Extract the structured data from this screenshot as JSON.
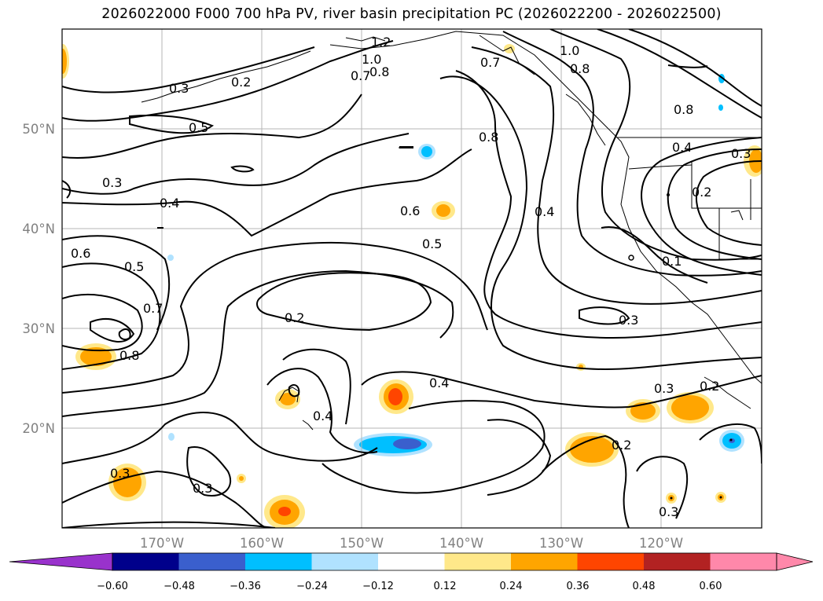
{
  "title": "2026022000 F000 700 hPa PV, river basin precipitation PC (2026022200 - 2026022500)",
  "lat_labels": [
    "50°N",
    "40°N",
    "30°N",
    "20°N"
  ],
  "lon_labels": [
    "170°W",
    "160°W",
    "150°W",
    "140°W",
    "130°W",
    "120°W"
  ],
  "contour_labels": [
    "1.2",
    "1.0",
    "1.0",
    "0.8",
    "0.8",
    "0.7",
    "0.7",
    "0.3",
    "0.2",
    "0.5",
    "0.3",
    "0.4",
    "0.6",
    "0.5",
    "0.8",
    "0.4",
    "0.6",
    "0.5",
    "0.7",
    "0.8",
    "0.2",
    "0.3",
    "0.4",
    "0.4",
    "0.3",
    "0.2",
    "0.3",
    "0.2",
    "0.3",
    "0.3",
    "0.8",
    "0.4",
    "0.3",
    "0.2",
    "0.1"
  ],
  "colorbar": {
    "colors": [
      "#9932cc",
      "#00008b",
      "#3a5fcd",
      "#00bfff",
      "#b0e2ff",
      "#ffffff",
      "#ffe88a",
      "#ffa500",
      "#ff4500",
      "#b22222",
      "#ff88aa",
      "#ff88aa"
    ],
    "tick_labels": [
      "−0.60",
      "−0.48",
      "−0.36",
      "−0.24",
      "−0.12",
      "0.12",
      "0.24",
      "0.36",
      "0.48",
      "0.60"
    ]
  },
  "chart_data": {
    "type": "heatmap",
    "projection": "lat-lon",
    "lon_range": [
      -180,
      -110
    ],
    "lat_range": [
      10,
      60
    ],
    "fields": [
      "700 hPa PV (contours)",
      "river basin precipitation PC (shaded)"
    ],
    "grid": true,
    "colorbar_levels": [
      -0.6,
      -0.48,
      -0.36,
      -0.24,
      -0.12,
      0.12,
      0.24,
      0.36,
      0.48,
      0.6
    ]
  }
}
